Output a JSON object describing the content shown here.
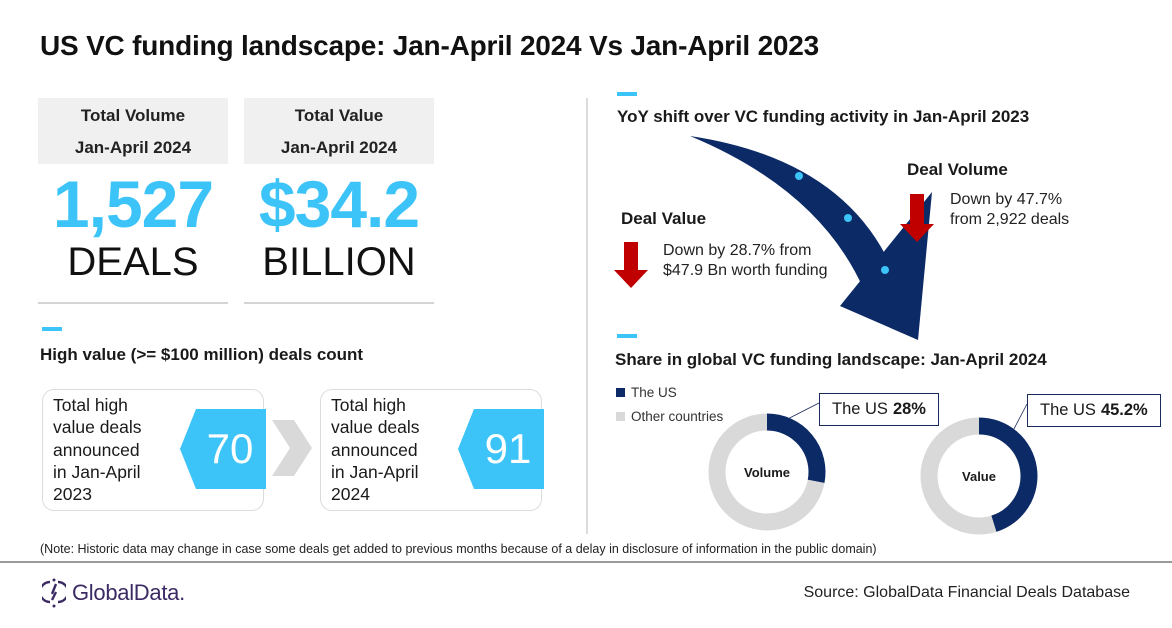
{
  "title": "US VC funding landscape: Jan-April 2024 Vs Jan-April 2023",
  "stats": [
    {
      "label": "Total Volume",
      "period": "Jan-April 2024",
      "value": "1,527",
      "unit": "DEALS"
    },
    {
      "label": "Total Value",
      "period": "Jan-April 2024",
      "value": "$34.2",
      "unit": "BILLION"
    }
  ],
  "high_value": {
    "title": "High value (>= $100 million) deals count",
    "cards": [
      {
        "lines": [
          "Total high",
          "value deals",
          "announced",
          "in Jan-April",
          "2023"
        ],
        "count": "70"
      },
      {
        "lines": [
          "Total high",
          "value deals",
          "announced",
          "in Jan-April",
          "2024"
        ],
        "count": "91"
      }
    ]
  },
  "yoy": {
    "title": "YoY shift over VC funding activity in Jan-April 2023",
    "deal_value": {
      "heading": "Deal Value",
      "lines": [
        "Down by 28.7% from",
        "$47.9 Bn worth funding"
      ],
      "change_pct": -28.7
    },
    "deal_volume": {
      "heading": "Deal Volume",
      "lines": [
        "Down by 47.7%",
        "from 2,922 deals"
      ],
      "change_pct": -47.7
    }
  },
  "share": {
    "title": "Share in global VC funding landscape: Jan-April 2024",
    "legend": [
      {
        "label": "The US",
        "color": "#0c2a66"
      },
      {
        "label": "Other countries",
        "color": "#d9d9d9"
      }
    ]
  },
  "chart_data": [
    {
      "type": "pie",
      "title": "Volume",
      "categories": [
        "The US",
        "Other countries"
      ],
      "values": [
        28,
        72
      ],
      "colors": [
        "#0c2a66",
        "#d9d9d9"
      ],
      "callout": {
        "prefix": "The US",
        "value": "28%"
      },
      "legend": "top-left"
    },
    {
      "type": "pie",
      "title": "Value",
      "categories": [
        "The US",
        "Other countries"
      ],
      "values": [
        45.2,
        54.8
      ],
      "colors": [
        "#0c2a66",
        "#d9d9d9"
      ],
      "callout": {
        "prefix": "The US",
        "value": "45.2%"
      },
      "legend": "top-left"
    }
  ],
  "colors": {
    "accent": "#3cc3f8",
    "navy": "#0c2a66",
    "down_red": "#c00000",
    "grey": "#d9d9d9"
  },
  "footer": {
    "note": "(Note: Historic data may change in case some deals get added to previous months because of a delay in disclosure of information in the public domain)",
    "logo": "GlobalData.",
    "source": "Source: GlobalData Financial Deals Database"
  }
}
